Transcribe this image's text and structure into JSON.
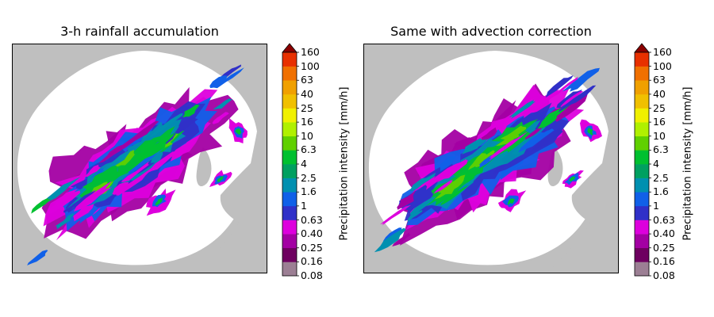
{
  "chart_data": [
    {
      "type": "heatmap",
      "title": "3-h rainfall accumulation",
      "colorbar": {
        "label": "Precipitation intensity [mm/h]",
        "ticks": [
          "0.08",
          "0.16",
          "0.25",
          "0.40",
          "0.63",
          "1",
          "1.6",
          "2.5",
          "4",
          "6.3",
          "10",
          "16",
          "25",
          "40",
          "63",
          "100",
          "160"
        ],
        "colors": [
          "#9c7f94",
          "#6e0060",
          "#a300a3",
          "#dd00dd",
          "#3030c8",
          "#1060e8",
          "#0090b0",
          "#00a060",
          "#00c030",
          "#60d000",
          "#b0f000",
          "#f0f000",
          "#f0c000",
          "#f0a000",
          "#f07000",
          "#e83000"
        ],
        "over_color": "#8b0000",
        "extend": "max"
      },
      "no_data_color": "#bfbfbf",
      "background_color": "#ffffff"
    },
    {
      "type": "heatmap",
      "title": "Same with advection correction",
      "colorbar": {
        "label": "Precipitation intensity [mm/h]",
        "ticks": [
          "0.08",
          "0.16",
          "0.25",
          "0.40",
          "0.63",
          "1",
          "1.6",
          "2.5",
          "4",
          "6.3",
          "10",
          "16",
          "25",
          "40",
          "63",
          "100",
          "160"
        ],
        "colors": [
          "#9c7f94",
          "#6e0060",
          "#a300a3",
          "#dd00dd",
          "#3030c8",
          "#1060e8",
          "#0090b0",
          "#00a060",
          "#00c030",
          "#60d000",
          "#b0f000",
          "#f0f000",
          "#f0c000",
          "#f0a000",
          "#f07000",
          "#e83000"
        ],
        "over_color": "#8b0000",
        "extend": "max"
      },
      "no_data_color": "#bfbfbf",
      "background_color": "#ffffff"
    }
  ]
}
